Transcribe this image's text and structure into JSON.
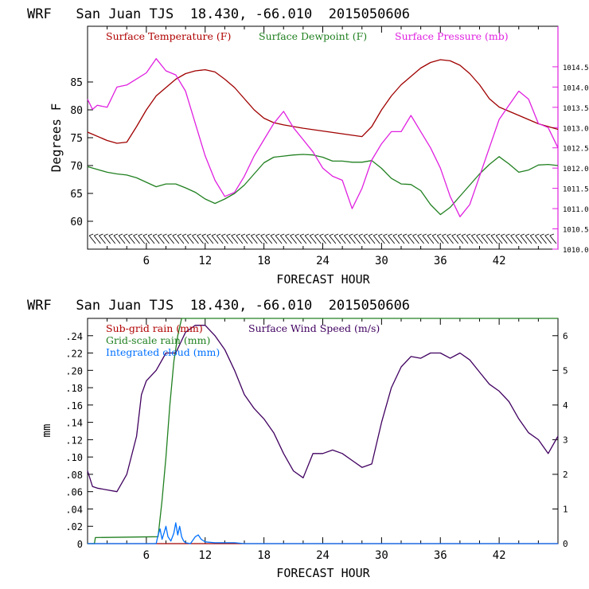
{
  "chart_data": [
    {
      "type": "line",
      "title": "WRF   San Juan TJS  18.430, -66.010  2015050606",
      "xlabel": "FORECAST HOUR",
      "ylabel": "Degrees F",
      "xlim": [
        0,
        48
      ],
      "ylim": [
        55,
        95
      ],
      "y2lim": [
        1010.0,
        1015.5
      ],
      "x_ticks": [
        6,
        12,
        18,
        24,
        30,
        36,
        42
      ],
      "y_ticks": [
        60,
        65,
        70,
        75,
        80,
        85
      ],
      "y2_ticks": [
        "1010.0",
        "1010.5",
        "1011.0",
        "1011.5",
        "1012.0",
        "1012.5",
        "1013.0",
        "1013.5",
        "1014.0",
        "1014.5"
      ],
      "legend": [
        "Surface Temperature (F)",
        "Surface Dewpoint (F)",
        "Surface Pressure (mb)"
      ],
      "grid": false,
      "has_wind_barbs": true,
      "series": [
        {
          "name": "Surface Temperature (F)",
          "axis": "left",
          "color": "#a00000",
          "x": [
            0,
            2,
            3,
            4,
            5,
            6,
            7,
            8,
            9,
            10,
            11,
            12,
            13,
            14,
            15,
            16,
            17,
            18,
            19,
            20,
            22,
            24,
            26,
            28,
            29,
            30,
            31,
            32,
            33,
            34,
            35,
            36,
            37,
            38,
            39,
            40,
            41,
            42,
            44,
            46,
            48
          ],
          "y": [
            76,
            74.5,
            74,
            74.2,
            77,
            80,
            82.5,
            84,
            85.5,
            86.5,
            87,
            87.2,
            86.8,
            85.5,
            84,
            82,
            80,
            78.5,
            77.7,
            77.3,
            76.7,
            76.2,
            75.7,
            75.2,
            77,
            80,
            82.5,
            84.5,
            86,
            87.5,
            88.5,
            89,
            88.8,
            88,
            86.5,
            84.5,
            82,
            80.5,
            79,
            77.5,
            76.5
          ]
        },
        {
          "name": "Surface Dewpoint (F)",
          "axis": "left",
          "color": "#208020",
          "x": [
            0,
            1,
            2,
            3,
            4,
            5,
            6,
            7,
            8,
            9,
            10,
            11,
            12,
            13,
            14,
            15,
            16,
            17,
            18,
            19,
            20,
            21,
            22,
            23,
            24,
            25,
            26,
            27,
            28,
            29,
            30,
            31,
            32,
            33,
            34,
            35,
            36,
            37,
            38,
            39,
            40,
            41,
            42,
            43,
            44,
            45,
            46,
            47,
            48
          ],
          "y": [
            69.8,
            69.3,
            68.8,
            68.5,
            68.3,
            67.8,
            67,
            66.2,
            66.7,
            66.7,
            66,
            65.2,
            64,
            63.2,
            64,
            65,
            66.5,
            68.5,
            70.5,
            71.5,
            71.7,
            71.9,
            72,
            71.9,
            71.5,
            70.8,
            70.8,
            70.6,
            70.6,
            70.9,
            69.5,
            67.7,
            66.7,
            66.6,
            65.5,
            63,
            61.2,
            62.5,
            64.5,
            66.5,
            68.5,
            70.2,
            71.6,
            70.3,
            68.8,
            69.2,
            70.1,
            70.2,
            70
          ]
        },
        {
          "name": "Surface Pressure (mb)",
          "axis": "right",
          "color": "#e020e0",
          "x": [
            0,
            0.5,
            1,
            2,
            3,
            4,
            5,
            6,
            7,
            8,
            9,
            10,
            11,
            12,
            13,
            14,
            15,
            16,
            17,
            18,
            19,
            20,
            21,
            22,
            23,
            24,
            25,
            26,
            27,
            28,
            29,
            30,
            31,
            32,
            33,
            34,
            35,
            36,
            37,
            38,
            39,
            40,
            41,
            42,
            43,
            44,
            45,
            46,
            47,
            48
          ],
          "y": [
            1013.7,
            1013.45,
            1013.55,
            1013.5,
            1014.0,
            1014.05,
            1014.2,
            1014.35,
            1014.7,
            1014.4,
            1014.3,
            1013.9,
            1013.1,
            1012.3,
            1011.7,
            1011.3,
            1011.4,
            1011.8,
            1012.3,
            1012.7,
            1013.1,
            1013.4,
            1013.0,
            1012.7,
            1012.4,
            1012.0,
            1011.8,
            1011.7,
            1011.0,
            1011.5,
            1012.2,
            1012.6,
            1012.9,
            1012.9,
            1013.3,
            1012.9,
            1012.5,
            1012.0,
            1011.3,
            1010.8,
            1011.1,
            1011.8,
            1012.5,
            1013.2,
            1013.55,
            1013.9,
            1013.7,
            1013.1,
            1013.0,
            1012.5
          ]
        }
      ]
    },
    {
      "type": "line",
      "title": "WRF   San Juan TJS  18.430, -66.010  2015050606",
      "xlabel": "FORECAST HOUR",
      "ylabel": "mm",
      "xlim": [
        0,
        48
      ],
      "ylim": [
        0,
        0.26
      ],
      "y2lim": [
        0,
        6.5
      ],
      "x_ticks": [
        6,
        12,
        18,
        24,
        30,
        36,
        42
      ],
      "y_ticks": [
        "0",
        ".02",
        ".04",
        ".06",
        ".08",
        ".10",
        ".12",
        ".14",
        ".16",
        ".18",
        ".20",
        ".22",
        ".24"
      ],
      "y2_ticks": [
        "0",
        "1",
        "2",
        "3",
        "4",
        "5",
        "6"
      ],
      "legend": [
        "Sub-grid rain (mm)",
        "Grid-scale rain (mm)",
        "Integrated cloud (mm)",
        "Surface Wind Speed (m/s)"
      ],
      "grid": false,
      "series": [
        {
          "name": "Sub-grid rain (mm)",
          "axis": "left",
          "color": "#a00000",
          "x": [
            0,
            48
          ],
          "y": [
            0,
            0
          ]
        },
        {
          "name": "Grid-scale rain (mm)",
          "axis": "left",
          "color": "#208020",
          "x": [
            0,
            0.7,
            0.8,
            7.2,
            7.6,
            8.0,
            8.4,
            8.8,
            9.2,
            9.6,
            10,
            48
          ],
          "y": [
            0,
            0,
            0.007,
            0.008,
            0.05,
            0.1,
            0.16,
            0.21,
            0.24,
            0.26,
            0.26,
            0.26
          ]
        },
        {
          "name": "Integrated cloud (mm)",
          "axis": "left",
          "color": "#0070ff",
          "x": [
            0,
            7.0,
            7.2,
            7.4,
            7.6,
            7.8,
            8.0,
            8.2,
            8.5,
            8.8,
            9.0,
            9.2,
            9.4,
            9.6,
            9.8,
            10.0,
            10.5,
            11.0,
            11.3,
            11.6,
            12,
            13,
            14,
            15,
            16,
            48
          ],
          "y": [
            0,
            0,
            0.01,
            0.017,
            0.005,
            0.012,
            0.02,
            0.008,
            0.003,
            0.012,
            0.024,
            0.01,
            0.02,
            0.008,
            0.003,
            0.001,
            0,
            0.008,
            0.01,
            0.005,
            0.002,
            0.001,
            0.001,
            0.001,
            0,
            0
          ]
        },
        {
          "name": "Surface Wind Speed (m/s)",
          "axis": "right",
          "color": "#400060",
          "x": [
            0,
            0.5,
            1,
            2,
            3,
            4,
            5,
            5.5,
            6,
            7,
            8,
            9,
            10,
            11,
            12,
            13,
            14,
            15,
            16,
            17,
            18,
            19,
            20,
            21,
            22,
            23,
            24,
            25,
            26,
            27,
            28,
            29,
            30,
            31,
            32,
            33,
            34,
            35,
            36,
            37,
            38,
            39,
            40,
            41,
            42,
            43,
            44,
            45,
            46,
            47,
            48
          ],
          "y": [
            2.1,
            1.65,
            1.6,
            1.55,
            1.5,
            2.0,
            3.1,
            4.3,
            4.7,
            5.0,
            5.5,
            5.5,
            6.1,
            6.3,
            6.3,
            6.0,
            5.6,
            5.0,
            4.3,
            3.9,
            3.6,
            3.2,
            2.6,
            2.1,
            1.9,
            2.6,
            2.6,
            2.7,
            2.6,
            2.4,
            2.2,
            2.3,
            3.5,
            4.5,
            5.1,
            5.4,
            5.35,
            5.5,
            5.5,
            5.35,
            5.5,
            5.3,
            4.95,
            4.6,
            4.4,
            4.1,
            3.6,
            3.2,
            3.0,
            2.6,
            3.1
          ]
        }
      ]
    }
  ]
}
